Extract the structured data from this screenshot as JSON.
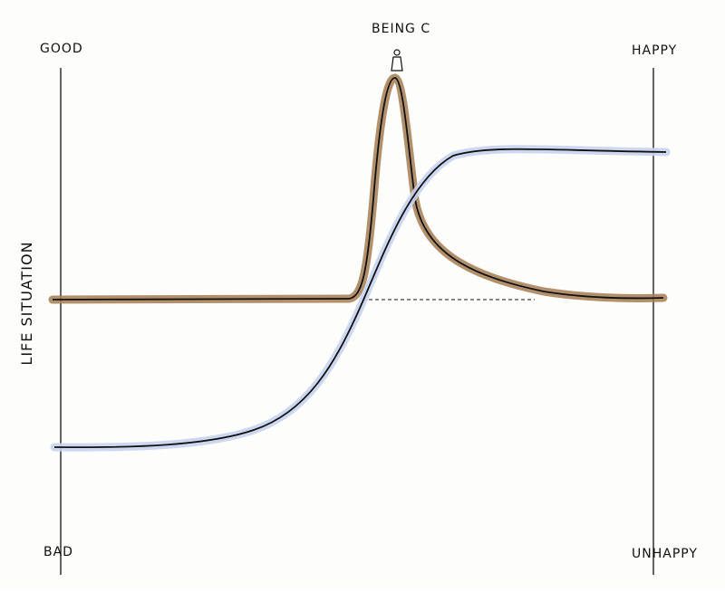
{
  "labels": {
    "top_left": "GOOD",
    "bottom_left": "BAD",
    "top_right": "HAPPY",
    "bottom_right": "UNHAPPY",
    "y_axis": "LIFE SITUATION",
    "peak": "BEING C"
  }
}
